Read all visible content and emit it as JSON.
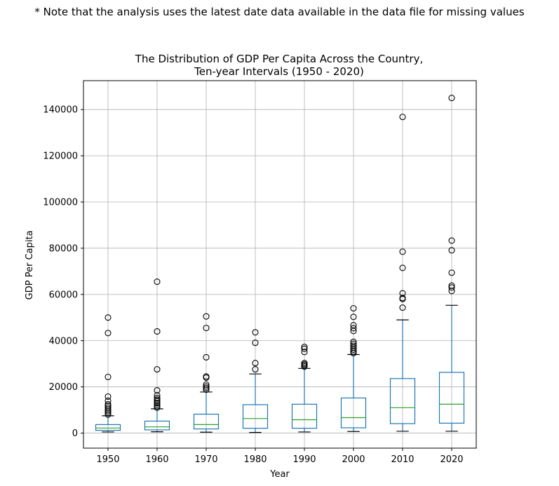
{
  "note": "* Note that the analysis uses the latest date data available in the data file for missing values",
  "chart_data": {
    "type": "box",
    "title_lines": [
      "The Distribution of GDP Per Capita Across the Country,",
      "Ten-year Intervals (1950 - 2020)"
    ],
    "xlabel": "Year",
    "ylabel": "GDP Per Capita",
    "categories": [
      "1950",
      "1960",
      "1970",
      "1980",
      "1990",
      "2000",
      "2010",
      "2020"
    ],
    "ylim": [
      -6500,
      152500
    ],
    "yticks": [
      0,
      20000,
      40000,
      60000,
      80000,
      100000,
      120000,
      140000
    ],
    "ytick_labels": [
      "0",
      "20000",
      "40000",
      "60000",
      "80000",
      "100000",
      "120000",
      "140000"
    ],
    "grid": true,
    "colors": {
      "box": "#1f77b4",
      "median": "#2ca02c",
      "whisker_cap": "#000000",
      "outlier": "#000000",
      "grid": "#b0b0b0"
    },
    "boxes": [
      {
        "year": "1950",
        "whislo": 500,
        "q1": 1200,
        "median": 2200,
        "q3": 3700,
        "whishi": 7500,
        "fliers": [
          8000,
          8800,
          9500,
          10200,
          11000,
          11800,
          12500,
          14000,
          15800,
          24300,
          43300,
          50000
        ]
      },
      {
        "year": "1960",
        "whislo": 600,
        "q1": 1400,
        "median": 2700,
        "q3": 5200,
        "whishi": 10500,
        "fliers": [
          11000,
          11600,
          12300,
          13000,
          13800,
          14500,
          15200,
          16300,
          18500,
          27600,
          44000,
          65500
        ]
      },
      {
        "year": "1970",
        "whislo": 400,
        "q1": 1800,
        "median": 3700,
        "q3": 8200,
        "whishi": 17800,
        "fliers": [
          18800,
          19500,
          20200,
          21000,
          24000,
          24500,
          32800,
          45500,
          50500
        ]
      },
      {
        "year": "1980",
        "whislo": 300,
        "q1": 2100,
        "median": 6300,
        "q3": 12300,
        "whishi": 25600,
        "fliers": [
          27600,
          30300,
          39100,
          43600
        ]
      },
      {
        "year": "1990",
        "whislo": 500,
        "q1": 2100,
        "median": 5800,
        "q3": 12500,
        "whishi": 28000,
        "fliers": [
          28800,
          29300,
          29800,
          30300,
          35100,
          36500,
          37300
        ]
      },
      {
        "year": "2000",
        "whislo": 700,
        "q1": 2300,
        "median": 6700,
        "q3": 15200,
        "whishi": 34000,
        "fliers": [
          34600,
          35300,
          36100,
          37000,
          37800,
          38600,
          39500,
          44200,
          45400,
          46700,
          50300,
          54000
        ]
      },
      {
        "year": "2010",
        "whislo": 800,
        "q1": 4100,
        "median": 11000,
        "q3": 23600,
        "whishi": 49000,
        "fliers": [
          54300,
          58000,
          58500,
          60500,
          71500,
          78500,
          136800
        ]
      },
      {
        "year": "2020",
        "whislo": 800,
        "q1": 4300,
        "median": 12500,
        "q3": 26300,
        "whishi": 55300,
        "fliers": [
          61500,
          63000,
          63800,
          69400,
          79100,
          83300,
          145000
        ]
      }
    ]
  }
}
